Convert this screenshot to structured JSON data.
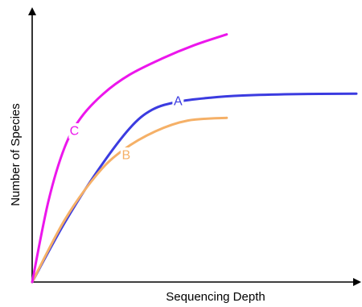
{
  "chart_data": {
    "type": "line",
    "title": "",
    "xlabel": "Sequencing Depth",
    "ylabel": "Number of Species",
    "xlim": [
      0,
      100
    ],
    "ylim": [
      0,
      100
    ],
    "grid": false,
    "legend": "none",
    "series": [
      {
        "name": "A",
        "color": "#3b3be0",
        "x": [
          0,
          10,
          20,
          30,
          37,
          45,
          55,
          65,
          80,
          100
        ],
        "y": [
          0,
          22,
          41,
          57,
          64,
          67,
          68.5,
          69.3,
          69.8,
          70
        ],
        "label_at": [
          45,
          67
        ]
      },
      {
        "name": "B",
        "color": "#f5b067",
        "x": [
          0,
          10,
          20,
          28,
          38,
          48,
          60
        ],
        "y": [
          0,
          23,
          40,
          49,
          56,
          60,
          61
        ],
        "label_at": [
          29,
          47
        ]
      },
      {
        "name": "C",
        "color": "#ec16ec",
        "x": [
          0,
          5,
          10,
          15,
          22,
          30,
          40,
          50,
          60
        ],
        "y": [
          0,
          30,
          50,
          61,
          70,
          77,
          83,
          88,
          92
        ],
        "label_at": [
          13,
          56
        ]
      }
    ]
  }
}
